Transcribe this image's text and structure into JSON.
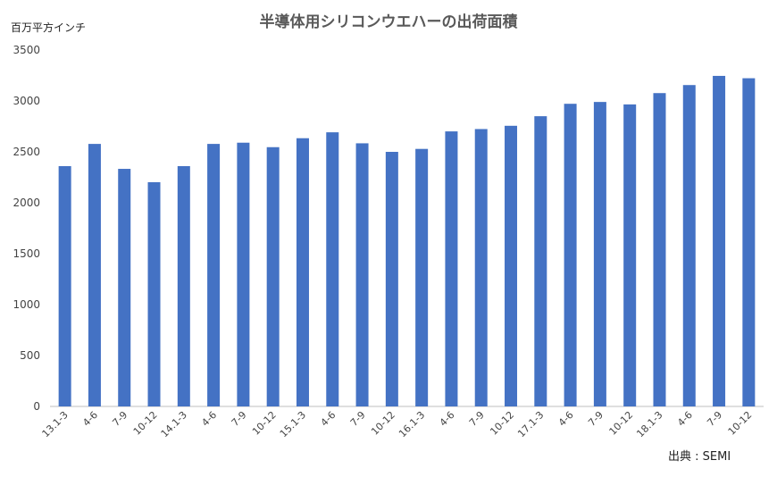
{
  "chart_data": {
    "type": "bar",
    "title": "半導体用シリコンウエハーの出荷面積",
    "ylabel": "百万平方インチ",
    "xlabel": "",
    "source": "出典 : SEMI",
    "ylim": [
      0,
      3500
    ],
    "yticks": [
      0,
      500,
      1000,
      1500,
      2000,
      2500,
      3000,
      3500
    ],
    "grid": false,
    "bar_color": "#4472C4",
    "categories": [
      "13.1-3",
      "4-6",
      "7-9",
      "10-12",
      "14.1-3",
      "4-6",
      "7-9",
      "10-12",
      "15.1-3",
      "4-6",
      "7-9",
      "10-12",
      "16.1-3",
      "4-6",
      "7-9",
      "10-12",
      "17.1-3",
      "4-6",
      "7-9",
      "10-12",
      "18.1-3",
      "4-6",
      "7-9",
      "10-12"
    ],
    "values": [
      2360,
      2578,
      2333,
      2202,
      2360,
      2578,
      2590,
      2546,
      2634,
      2692,
      2584,
      2500,
      2529,
      2701,
      2724,
      2756,
      2850,
      2972,
      2990,
      2966,
      3077,
      3156,
      3246,
      3223
    ]
  }
}
